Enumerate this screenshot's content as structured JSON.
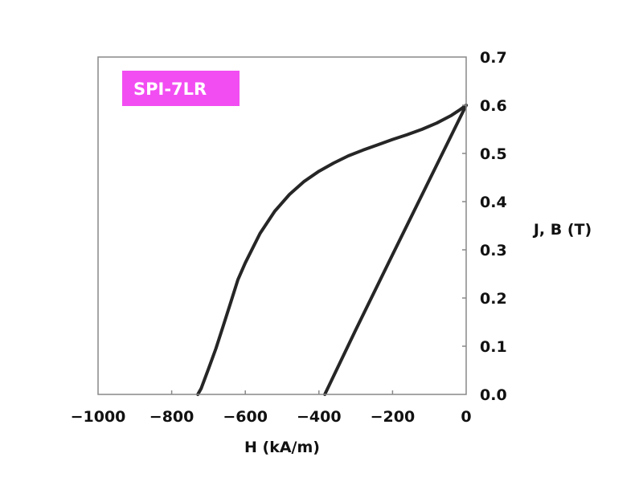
{
  "chart_data": {
    "type": "line",
    "title": "",
    "xlabel": "H (kA/m)",
    "ylabel": "J, B (T)",
    "xlim": [
      -1000,
      0
    ],
    "ylim": [
      0,
      0.7
    ],
    "x_ticks": [
      -1000,
      -800,
      -600,
      -400,
      -200,
      0
    ],
    "x_tick_labels": [
      "−1000",
      "−800",
      "−600",
      "−400",
      "−200",
      "0"
    ],
    "y_ticks": [
      0,
      0.1,
      0.2,
      0.3,
      0.4,
      0.5,
      0.6,
      0.7
    ],
    "y_tick_labels": [
      "0.0",
      "0.1",
      "0.2",
      "0.3",
      "0.4",
      "0.5",
      "0.6",
      "0.7"
    ],
    "y_axis_side": "right",
    "grid": false,
    "badge": {
      "text": "SPI-7LR",
      "background": "#f24df2",
      "text_color": "#ffffff",
      "placement": "top-left"
    },
    "line_color": "#262626",
    "frame_color": "#888888",
    "series": [
      {
        "curve": "J",
        "x": [
          0,
          -20,
          -40,
          -80,
          -120,
          -160,
          -200,
          -240,
          -280,
          -320,
          -360,
          -400,
          -440,
          -480,
          -520,
          -560,
          -600,
          -620,
          -640,
          -660,
          -680,
          -700,
          -720,
          -729
        ],
        "y": [
          0.6,
          0.589,
          0.579,
          0.563,
          0.55,
          0.539,
          0.529,
          0.518,
          0.507,
          0.495,
          0.48,
          0.463,
          0.442,
          0.415,
          0.38,
          0.334,
          0.273,
          0.238,
          0.19,
          0.142,
          0.095,
          0.053,
          0.012,
          0.0
        ]
      },
      {
        "curve": "B",
        "x": [
          0,
          -100,
          -200,
          -300,
          -384
        ],
        "y": [
          0.6,
          0.445,
          0.29,
          0.134,
          0.0
        ]
      }
    ]
  }
}
